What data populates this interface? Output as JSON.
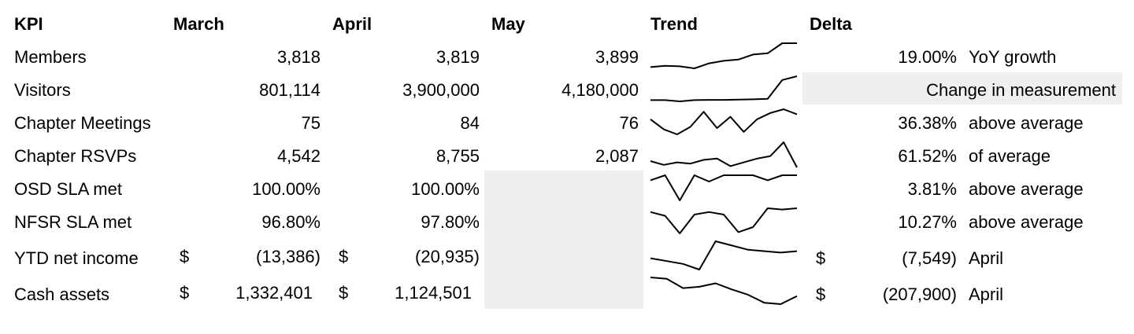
{
  "headers": {
    "kpi": "KPI",
    "march": "March",
    "april": "April",
    "may": "May",
    "trend": "Trend",
    "delta": "Delta"
  },
  "rows": [
    {
      "kpi": "Members",
      "march": "3,818",
      "april": "3,819",
      "may": "3,899",
      "delta_value": "19.00%",
      "delta_note": "YoY growth",
      "trend": [
        0.05,
        0.1,
        0.08,
        0.0,
        0.2,
        0.3,
        0.35,
        0.55,
        0.6,
        1.0,
        1.0
      ]
    },
    {
      "kpi": "Visitors",
      "march": "801,114",
      "april": "3,900,000",
      "may": "4,180,000",
      "delta_message": "Change in measurement",
      "trend": [
        0.05,
        0.05,
        0.0,
        0.05,
        0.06,
        0.06,
        0.07,
        0.08,
        0.1,
        0.85,
        1.0
      ]
    },
    {
      "kpi": "Chapter Meetings",
      "march": "75",
      "april": "84",
      "may": "76",
      "delta_value": "36.38%",
      "delta_note": "above average",
      "trend": [
        0.6,
        0.2,
        0.0,
        0.3,
        0.9,
        0.25,
        0.7,
        0.1,
        0.6,
        0.85,
        1.0,
        0.8
      ]
    },
    {
      "kpi": "Chapter RSVPs",
      "march": "4,542",
      "april": "8,755",
      "may": "2,087",
      "delta_value": "61.52%",
      "delta_note": "of average",
      "trend": [
        0.25,
        0.1,
        0.2,
        0.15,
        0.3,
        0.35,
        0.05,
        0.2,
        0.35,
        0.45,
        1.0,
        0.0
      ]
    },
    {
      "kpi": "OSD SLA met",
      "march": "100.00%",
      "april": "100.00%",
      "may": "",
      "delta_value": "3.81%",
      "delta_note": "above average",
      "trend": [
        0.8,
        1.0,
        0.0,
        1.0,
        0.75,
        1.0,
        1.0,
        1.0,
        0.8,
        1.0,
        1.0
      ]
    },
    {
      "kpi": "NFSR SLA met",
      "march": "96.80%",
      "april": "97.80%",
      "may": "",
      "delta_value": "10.27%",
      "delta_note": "above average",
      "trend": [
        0.85,
        0.7,
        0.0,
        0.75,
        0.85,
        0.75,
        0.05,
        0.25,
        1.0,
        0.95,
        1.0
      ]
    },
    {
      "kpi": "YTD net income",
      "march_currency": "$",
      "march": "(13,386)",
      "april_currency": "$",
      "april": "(20,935)",
      "may": "",
      "delta_currency": "$",
      "delta_value": "(7,549)",
      "delta_note": "April",
      "trend": [
        0.4,
        0.3,
        0.2,
        0.0,
        1.0,
        0.85,
        0.7,
        0.65,
        0.6,
        0.65
      ]
    },
    {
      "kpi": "Cash assets",
      "march_currency": "$",
      "march": "1,332,401",
      "april_currency": "$",
      "april": "1,124,501",
      "may": "",
      "delta_currency": "$",
      "delta_value": "(207,900)",
      "delta_note": "April",
      "trend": [
        1.0,
        0.95,
        0.6,
        0.65,
        0.78,
        0.55,
        0.35,
        0.05,
        0.0,
        0.3
      ]
    }
  ]
}
